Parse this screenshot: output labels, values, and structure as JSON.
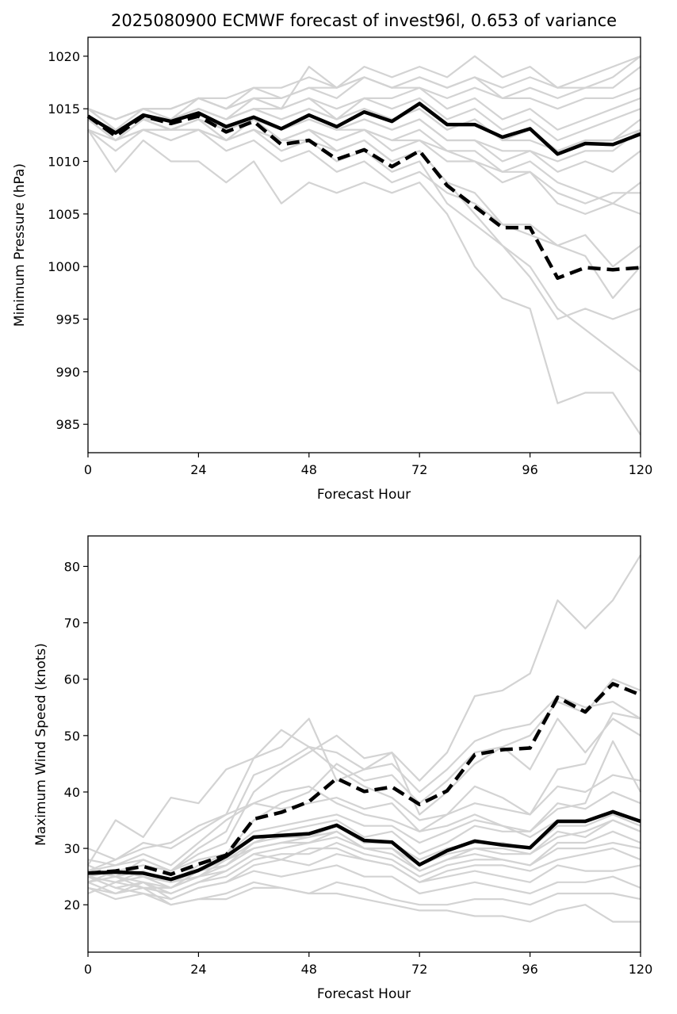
{
  "chart_data": [
    {
      "type": "line",
      "title": "2025080900 ECMWF forecast of invest96l, 0.653 of variance",
      "xlabel": "Forecast Hour",
      "ylabel": "Minimum Pressure (hPa)",
      "xlim": [
        0,
        120
      ],
      "ylim": [
        982.3,
        1021.8
      ],
      "xticks": [
        0,
        24,
        48,
        72,
        96,
        120
      ],
      "xtick_labels": [
        "0",
        "24",
        "48",
        "72",
        "96",
        "120"
      ],
      "yticks": [
        985,
        990,
        995,
        1000,
        1005,
        1010,
        1015,
        1020
      ],
      "ytick_labels": [
        "985",
        "990",
        "995",
        "1000",
        "1005",
        "1010",
        "1015",
        "1020"
      ],
      "grid": false,
      "x": [
        0,
        6,
        12,
        18,
        24,
        30,
        36,
        42,
        48,
        54,
        60,
        66,
        72,
        78,
        84,
        90,
        96,
        102,
        108,
        114,
        120
      ],
      "series": [
        {
          "style": "solid",
          "color": "#000000",
          "values": [
            1014.3,
            1012.7,
            1014.4,
            1013.8,
            1014.6,
            1013.3,
            1014.2,
            1013.1,
            1014.4,
            1013.3,
            1014.7,
            1013.8,
            1015.5,
            1013.5,
            1013.5,
            1012.3,
            1013.1,
            1010.7,
            1011.7,
            1011.6,
            1012.6
          ]
        },
        {
          "style": "dashed",
          "color": "#000000",
          "values": [
            1014.3,
            1012.4,
            1014.3,
            1013.6,
            1014.3,
            1012.8,
            1013.8,
            1011.6,
            1012.0,
            1010.2,
            1011.1,
            1009.5,
            1011.0,
            1007.7,
            1005.7,
            1003.7,
            1003.7,
            998.9,
            999.9,
            999.7,
            999.9
          ]
        }
      ],
      "members": [
        [
          1014,
          1012,
          1014,
          1013,
          1013,
          1012,
          1013,
          1012,
          1013,
          1011,
          1012,
          1010,
          1011,
          1008,
          1005,
          1002,
          1000,
          996,
          994,
          992,
          990
        ],
        [
          1015,
          1013,
          1014,
          1014,
          1015,
          1014,
          1015,
          1015,
          1016,
          1015,
          1016,
          1016,
          1017,
          1015,
          1016,
          1014,
          1015,
          1013,
          1014,
          1015,
          1016
        ],
        [
          1013,
          1011,
          1013,
          1012,
          1013,
          1012,
          1013,
          1011,
          1012,
          1010,
          1011,
          1009,
          1010,
          1006,
          1004,
          1002,
          999,
          995,
          996,
          995,
          996
        ],
        [
          1014,
          1012,
          1014,
          1013,
          1014,
          1013,
          1014,
          1013,
          1014,
          1013,
          1014,
          1013,
          1014,
          1012,
          1012,
          1010,
          1011,
          1009,
          1010,
          1009,
          1011
        ],
        [
          1015,
          1013,
          1015,
          1014,
          1016,
          1015,
          1016,
          1016,
          1017,
          1016,
          1018,
          1017,
          1018,
          1017,
          1018,
          1016,
          1017,
          1016,
          1017,
          1017,
          1019
        ],
        [
          1013,
          1009,
          1012,
          1010,
          1010,
          1008,
          1010,
          1006,
          1008,
          1007,
          1008,
          1007,
          1008,
          1005,
          1000,
          997,
          996,
          987,
          988,
          988,
          984
        ],
        [
          1014,
          1012,
          1014,
          1013,
          1014,
          1012,
          1013,
          1012,
          1013,
          1012,
          1013,
          1011,
          1012,
          1010,
          1010,
          1008,
          1009,
          1006,
          1005,
          1006,
          1008
        ],
        [
          1015,
          1014,
          1015,
          1014,
          1015,
          1014,
          1015,
          1014,
          1015,
          1014,
          1016,
          1015,
          1016,
          1014,
          1015,
          1013,
          1014,
          1012,
          1013,
          1014,
          1015
        ],
        [
          1014,
          1012,
          1013,
          1012,
          1013,
          1011,
          1012,
          1010,
          1011,
          1009,
          1010,
          1008,
          1009,
          1007,
          1006,
          1004,
          1004,
          1002,
          1001,
          997,
          1000
        ],
        [
          1015,
          1014,
          1015,
          1015,
          1016,
          1015,
          1017,
          1016,
          1017,
          1017,
          1018,
          1017,
          1018,
          1017,
          1018,
          1017,
          1018,
          1017,
          1017,
          1018,
          1020
        ],
        [
          1014,
          1013,
          1014,
          1013,
          1014,
          1013,
          1014,
          1012,
          1013,
          1012,
          1013,
          1012,
          1013,
          1011,
          1011,
          1009,
          1010,
          1008,
          1007,
          1006,
          1005
        ],
        [
          1015,
          1013,
          1014,
          1014,
          1015,
          1014,
          1016,
          1015,
          1016,
          1014,
          1015,
          1014,
          1015,
          1013,
          1014,
          1012,
          1013,
          1011,
          1012,
          1012,
          1013
        ],
        [
          1013,
          1012,
          1013,
          1013,
          1014,
          1012,
          1014,
          1013,
          1014,
          1013,
          1014,
          1013,
          1014,
          1012,
          1012,
          1011,
          1011,
          1010,
          1011,
          1011,
          1013
        ],
        [
          1015,
          1014,
          1015,
          1015,
          1016,
          1015,
          1016,
          1015,
          1019,
          1017,
          1019,
          1018,
          1019,
          1018,
          1020,
          1018,
          1019,
          1017,
          1018,
          1019,
          1020
        ],
        [
          1014,
          1013,
          1014,
          1014,
          1015,
          1014,
          1015,
          1014,
          1015,
          1014,
          1015,
          1014,
          1015,
          1013,
          1014,
          1012,
          1012,
          1011,
          1012,
          1012,
          1014
        ],
        [
          1014,
          1012,
          1013,
          1013,
          1013,
          1012,
          1013,
          1012,
          1012,
          1011,
          1012,
          1010,
          1011,
          1008,
          1007,
          1004,
          1003,
          1002,
          1003,
          1000,
          1002
        ],
        [
          1015,
          1014,
          1015,
          1015,
          1016,
          1016,
          1017,
          1017,
          1018,
          1017,
          1018,
          1017,
          1017,
          1016,
          1017,
          1016,
          1016,
          1015,
          1016,
          1016,
          1017
        ],
        [
          1014,
          1013,
          1014,
          1013,
          1014,
          1013,
          1014,
          1013,
          1014,
          1013,
          1013,
          1012,
          1012,
          1011,
          1010,
          1009,
          1009,
          1007,
          1006,
          1007,
          1007
        ]
      ]
    },
    {
      "type": "line",
      "title": "",
      "xlabel": "Forecast Hour",
      "ylabel": "Maximum Wind Speed (knots)",
      "xlim": [
        0,
        120
      ],
      "ylim": [
        11.6,
        85.4
      ],
      "xticks": [
        0,
        24,
        48,
        72,
        96,
        120
      ],
      "xtick_labels": [
        "0",
        "24",
        "48",
        "72",
        "96",
        "120"
      ],
      "yticks": [
        20,
        30,
        40,
        50,
        60,
        70,
        80
      ],
      "ytick_labels": [
        "20",
        "30",
        "40",
        "50",
        "60",
        "70",
        "80"
      ],
      "grid": false,
      "x": [
        0,
        6,
        12,
        18,
        24,
        30,
        36,
        42,
        48,
        54,
        60,
        66,
        72,
        78,
        84,
        90,
        96,
        102,
        108,
        114,
        120
      ],
      "series": [
        {
          "style": "solid",
          "color": "#000000",
          "values": [
            25.6,
            25.8,
            25.6,
            24.5,
            26.1,
            28.6,
            32.0,
            32.3,
            32.6,
            34.1,
            31.4,
            31.1,
            27.1,
            29.6,
            31.3,
            30.6,
            30.1,
            34.8,
            34.8,
            36.5,
            34.8
          ]
        },
        {
          "style": "dashed",
          "color": "#000000",
          "values": [
            25.6,
            26.0,
            26.8,
            25.4,
            27.2,
            28.8,
            35.2,
            36.4,
            38.3,
            42.4,
            40.1,
            40.9,
            37.8,
            40.2,
            46.6,
            47.5,
            47.8,
            56.8,
            54.2,
            59.2,
            57.2
          ]
        }
      ],
      "members": [
        [
          27,
          25,
          28,
          26,
          29,
          31,
          40,
          44,
          47,
          50,
          46,
          47,
          42,
          47,
          57,
          58,
          61,
          74,
          69,
          74,
          82
        ],
        [
          25,
          24,
          26,
          24,
          27,
          29,
          35,
          38,
          40,
          45,
          42,
          43,
          38,
          42,
          47,
          48,
          50,
          56,
          54,
          60,
          58
        ],
        [
          26,
          27,
          28,
          26,
          30,
          33,
          43,
          45,
          48,
          47,
          44,
          45,
          40,
          44,
          49,
          51,
          52,
          57,
          55,
          56,
          53
        ],
        [
          24,
          26,
          25,
          24,
          25,
          27,
          30,
          31,
          32,
          33,
          30,
          30,
          26,
          28,
          30,
          29,
          29,
          33,
          32,
          35,
          33
        ],
        [
          25,
          23,
          24,
          22,
          24,
          26,
          29,
          28,
          30,
          30,
          28,
          27,
          24,
          25,
          26,
          25,
          24,
          27,
          26,
          26,
          27
        ],
        [
          30,
          28,
          31,
          30,
          33,
          36,
          46,
          48,
          53,
          42,
          44,
          47,
          36,
          40,
          45,
          48,
          44,
          53,
          47,
          53,
          50
        ],
        [
          23,
          22,
          24,
          21,
          23,
          24,
          26,
          25,
          26,
          27,
          25,
          25,
          22,
          23,
          24,
          23,
          22,
          24,
          24,
          25,
          23
        ],
        [
          26,
          28,
          30,
          31,
          34,
          36,
          38,
          40,
          41,
          38,
          36,
          35,
          33,
          36,
          38,
          37,
          36,
          41,
          40,
          43,
          42
        ],
        [
          25,
          26,
          27,
          26,
          28,
          29,
          33,
          34,
          35,
          36,
          34,
          34,
          31,
          33,
          35,
          34,
          33,
          38,
          37,
          40,
          38
        ],
        [
          24,
          25,
          23,
          22,
          24,
          25,
          28,
          29,
          29,
          31,
          29,
          28,
          25,
          27,
          28,
          28,
          27,
          30,
          30,
          31,
          30
        ],
        [
          22,
          24,
          23,
          23,
          25,
          28,
          31,
          33,
          34,
          35,
          32,
          33,
          29,
          31,
          34,
          33,
          33,
          37,
          38,
          49,
          40
        ],
        [
          27,
          35,
          32,
          39,
          38,
          44,
          46,
          51,
          48,
          44,
          41,
          39,
          35,
          36,
          41,
          39,
          36,
          44,
          45,
          54,
          53
        ],
        [
          25,
          23,
          22,
          21,
          23,
          24,
          27,
          28,
          27,
          29,
          28,
          27,
          24,
          26,
          27,
          27,
          26,
          28,
          29,
          30,
          28
        ],
        [
          26,
          25,
          24,
          23,
          25,
          26,
          29,
          30,
          31,
          32,
          30,
          29,
          26,
          28,
          29,
          28,
          27,
          31,
          31,
          33,
          31
        ],
        [
          24,
          22,
          23,
          20,
          21,
          22,
          24,
          23,
          22,
          24,
          23,
          21,
          20,
          20,
          21,
          21,
          20,
          22,
          22,
          22,
          21
        ],
        [
          28,
          27,
          29,
          27,
          31,
          35,
          38,
          37,
          38,
          39,
          37,
          38,
          33,
          34,
          36,
          34,
          32,
          35,
          35,
          36,
          34
        ],
        [
          25,
          24,
          25,
          23,
          26,
          27,
          31,
          32,
          32,
          34,
          31,
          31,
          28,
          30,
          31,
          31,
          30,
          34,
          34,
          36,
          35
        ],
        [
          23,
          21,
          22,
          20,
          21,
          21,
          23,
          23,
          22,
          22,
          21,
          20,
          19,
          19,
          18,
          18,
          17,
          19,
          20,
          17,
          17
        ],
        [
          26,
          25,
          26,
          24,
          26,
          28,
          30,
          31,
          31,
          33,
          30,
          30,
          27,
          29,
          30,
          30,
          29,
          32,
          33,
          35,
          33
        ]
      ]
    }
  ]
}
